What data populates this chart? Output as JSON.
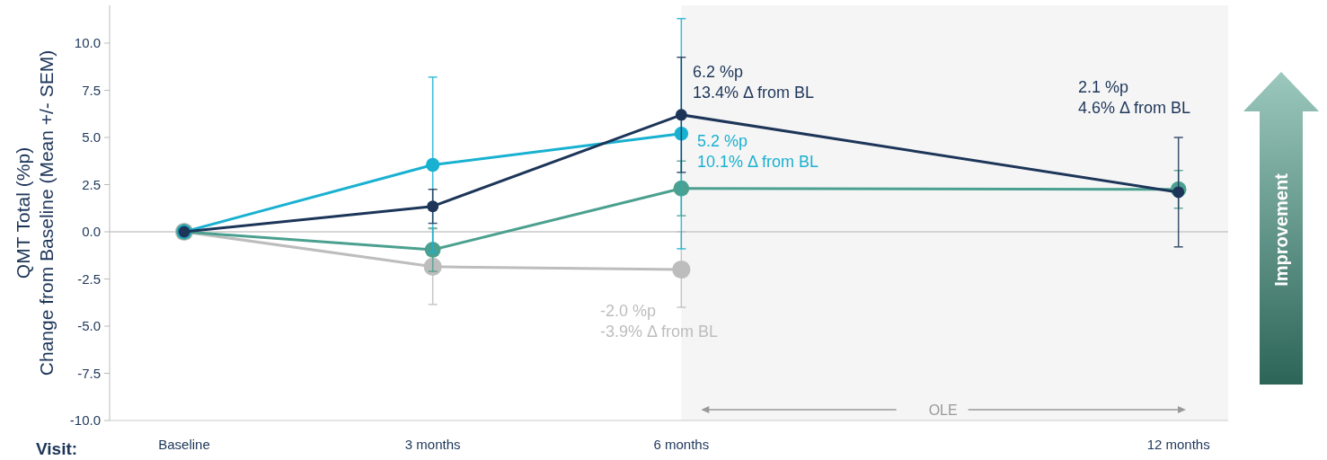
{
  "chart_data": {
    "type": "line",
    "ylabel": "QMT Total (%p)\nChange from Baseline (Mean +/- SEM)",
    "xlabel": "Visit:",
    "xlim": [
      -0.9,
      12.6
    ],
    "xticks": [
      {
        "value": 0,
        "label": "Baseline"
      },
      {
        "value": 3,
        "label": "3 months"
      },
      {
        "value": 6,
        "label": "6 months"
      },
      {
        "value": 12,
        "label": "12 months"
      }
    ],
    "ylim": [
      -10,
      12
    ],
    "yticks": [
      {
        "value": 10,
        "label": "10.0"
      },
      {
        "value": 7.5,
        "label": "7.5"
      },
      {
        "value": 5,
        "label": "5.0"
      },
      {
        "value": 2.5,
        "label": "2.5"
      },
      {
        "value": 0,
        "label": "0.0"
      },
      {
        "value": -2.5,
        "label": "-2.5"
      },
      {
        "value": -5,
        "label": "-5.0"
      },
      {
        "value": -7.5,
        "label": "-7.5"
      },
      {
        "value": -10,
        "label": "-10.0"
      }
    ],
    "marker": "circle",
    "grid": false,
    "series": [
      {
        "color": "#bdbdbd",
        "x": [
          0,
          3,
          6
        ],
        "values": [
          0,
          -1.85,
          -2.0
        ],
        "errors": [
          null,
          2.0,
          2.0
        ]
      },
      {
        "color": "#4ba08f",
        "x": [
          0,
          3,
          6,
          12
        ],
        "values": [
          0,
          -0.95,
          2.3,
          2.25
        ],
        "errors": [
          null,
          1.15,
          1.45,
          1.0
        ]
      },
      {
        "color": "#19b1d1",
        "x": [
          0,
          3,
          6
        ],
        "values": [
          0,
          3.55,
          5.2
        ],
        "errors": [
          null,
          4.65,
          6.1
        ]
      },
      {
        "color": "#1c3558",
        "x": [
          0,
          3,
          6,
          12
        ],
        "values": [
          0,
          1.35,
          6.2,
          2.1
        ],
        "errors": [
          null,
          0.9,
          3.05,
          2.9
        ]
      }
    ],
    "ref_lines": [
      {
        "axis": "y",
        "value": 0,
        "color": "#c8c8c8"
      }
    ],
    "bands": [
      {
        "axis": "x",
        "from": 6,
        "to": 12.6,
        "label": "OLE",
        "color": "#f5f5f5"
      }
    ],
    "annotations": [
      "6.2 %p\n13.4% Δ from BL",
      "5.2 %p\n10.1% Δ from BL",
      "-2.0 %p\n-3.9% Δ from BL",
      "2.1 %p\n4.6% Δ from BL",
      "Improvement"
    ]
  }
}
